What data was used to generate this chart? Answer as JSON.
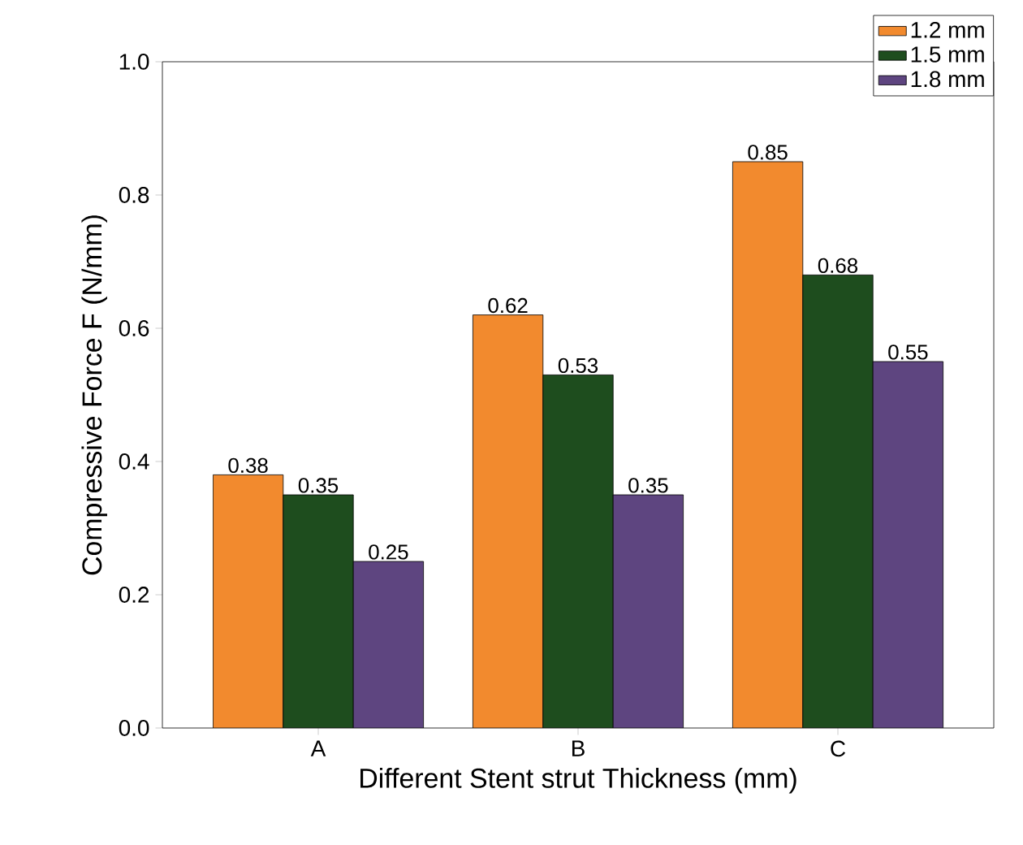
{
  "chart_data": {
    "type": "bar",
    "xlabel": "Different Stent strut Thickness (mm)",
    "ylabel": "Compressive Force F (N/mm)",
    "categories": [
      "A",
      "B",
      "C"
    ],
    "series": [
      {
        "name": "1.2 mm",
        "color": "#f28a2e",
        "values": [
          0.38,
          0.62,
          0.85
        ]
      },
      {
        "name": "1.5 mm",
        "color": "#1e4d1e",
        "values": [
          0.35,
          0.53,
          0.68
        ]
      },
      {
        "name": "1.8 mm",
        "color": "#5e4580",
        "values": [
          0.25,
          0.35,
          0.55
        ]
      }
    ],
    "ylim": [
      0,
      1.0
    ],
    "yticks": [
      {
        "value": 0,
        "label": "0.0"
      },
      {
        "value": 0.2,
        "label": "0.2"
      },
      {
        "value": 0.4,
        "label": "0.4"
      },
      {
        "value": 0.6,
        "label": "0.6"
      },
      {
        "value": 0.8,
        "label": "0.8"
      },
      {
        "value": 1.0,
        "label": "1.0"
      }
    ],
    "data_labels": true,
    "legend": "top right",
    "grid": false
  }
}
